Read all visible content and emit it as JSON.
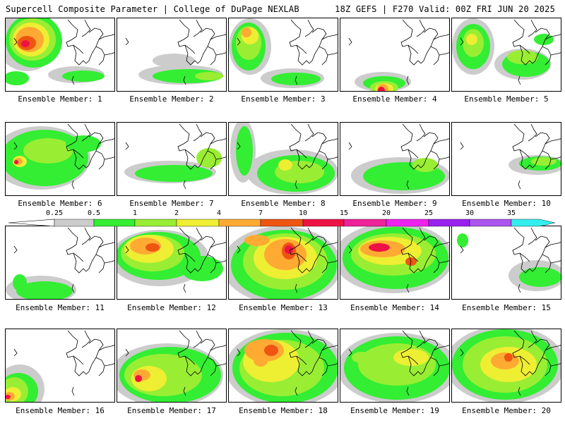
{
  "header": {
    "left": "Supercell Composite Parameter | College of DuPage NEXLAB",
    "right": "18Z GEFS | F270 Valid: 00Z FRI JUN 20 2025"
  },
  "colorbar": {
    "ticks": [
      "0.25",
      "0.5",
      "1",
      "2",
      "4",
      "7",
      "10",
      "15",
      "20",
      "25",
      "30",
      "35"
    ],
    "colors": [
      "#cccccc",
      "#33ee33",
      "#99ee33",
      "#eeee33",
      "#ffaa33",
      "#ee5511",
      "#ee1144",
      "#ee2299",
      "#ee22ee",
      "#9922ee",
      "#aa55ee",
      "#33eeee"
    ]
  },
  "panels": [
    {
      "label": "Ensemble Member: 1"
    },
    {
      "label": "Ensemble Member: 2"
    },
    {
      "label": "Ensemble Member: 3"
    },
    {
      "label": "Ensemble Member: 4"
    },
    {
      "label": "Ensemble Member: 5"
    },
    {
      "label": "Ensemble Member: 6"
    },
    {
      "label": "Ensemble Member: 7"
    },
    {
      "label": "Ensemble Member: 8"
    },
    {
      "label": "Ensemble Member: 9"
    },
    {
      "label": "Ensemble Member: 10"
    },
    {
      "label": "Ensemble Member: 11"
    },
    {
      "label": "Ensemble Member: 12"
    },
    {
      "label": "Ensemble Member: 13"
    },
    {
      "label": "Ensemble Member: 14"
    },
    {
      "label": "Ensemble Member: 15"
    },
    {
      "label": "Ensemble Member: 16"
    },
    {
      "label": "Ensemble Member: 17"
    },
    {
      "label": "Ensemble Member: 18"
    },
    {
      "label": "Ensemble Member: 19"
    },
    {
      "label": "Ensemble Member: 20"
    }
  ]
}
